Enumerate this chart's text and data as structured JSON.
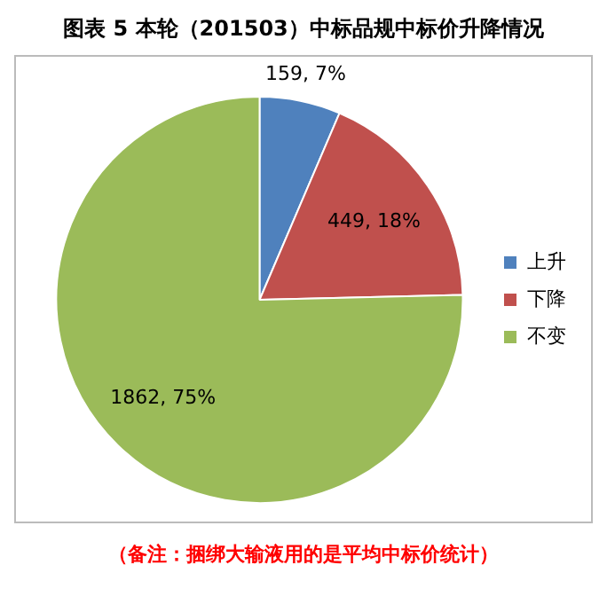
{
  "chart_data": {
    "type": "pie",
    "title": "图表 5 本轮（201503）中标品规中标价升降情况",
    "categories": [
      "上升",
      "下降",
      "不变"
    ],
    "values": [
      159,
      449,
      1862
    ],
    "colors": [
      "#4f81bd",
      "#c0504d",
      "#9bbb59"
    ],
    "value_labels": [
      "159, 7%",
      "449, 18%",
      "1862, 75%"
    ],
    "legend": "right",
    "annotations": [
      "（备注：捆绑大输液用的是平均中标价统计）"
    ]
  }
}
